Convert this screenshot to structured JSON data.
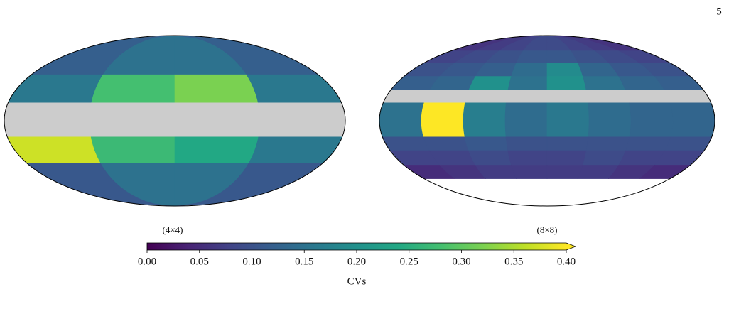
{
  "page_number": "5",
  "chart_data": {
    "type": "mollweide-heatmap",
    "cmap": "viridis",
    "bad_color": "#cccccc",
    "maps": [
      {
        "title": "(4×4)",
        "values": [
          [
            0.12,
            0.15,
            0.15,
            0.12
          ],
          [
            0.16,
            0.28,
            0.32,
            0.16
          ],
          [
            null,
            null,
            null,
            null
          ],
          [
            0.37,
            0.27,
            0.24,
            0.16
          ],
          [
            0.11,
            0.15,
            0.15,
            0.11
          ]
        ]
      },
      {
        "title": "(8×8)",
        "values": [
          [
            0.06,
            0.07,
            0.08,
            0.09,
            0.09,
            0.08,
            0.07,
            0.06
          ],
          [
            0.08,
            0.09,
            0.1,
            0.11,
            0.11,
            0.1,
            0.09,
            0.08
          ],
          [
            0.1,
            0.11,
            0.12,
            0.14,
            0.19,
            0.13,
            0.11,
            0.1
          ],
          [
            0.12,
            0.13,
            0.2,
            0.15,
            0.2,
            0.15,
            0.13,
            0.12
          ],
          [
            null,
            null,
            null,
            null,
            null,
            null,
            null,
            null
          ],
          [
            0.15,
            0.4,
            0.17,
            0.14,
            0.16,
            0.14,
            0.13,
            0.13
          ],
          [
            0.1,
            0.1,
            0.11,
            0.1,
            0.1,
            0.1,
            0.1,
            0.1
          ],
          [
            0.08,
            0.08,
            0.09,
            0.08,
            0.08,
            0.09,
            0.08,
            0.08
          ],
          [
            0.05,
            0.06,
            0.07,
            0.07,
            0.07,
            0.07,
            0.06,
            0.05
          ]
        ]
      }
    ],
    "colorbar": {
      "label": "CVs",
      "xlim": [
        0,
        0.4
      ],
      "extend": "max",
      "xticks": [
        {
          "value": 0,
          "label": "0.00"
        },
        {
          "value": 0.05,
          "label": "0.05"
        },
        {
          "value": 0.1,
          "label": "0.10"
        },
        {
          "value": 0.15,
          "label": "0.15"
        },
        {
          "value": 0.2,
          "label": "0.20"
        },
        {
          "value": 0.25,
          "label": "0.25"
        },
        {
          "value": 0.3,
          "label": "0.30"
        },
        {
          "value": 0.35,
          "label": "0.35"
        },
        {
          "value": 0.4,
          "label": "0.40"
        }
      ]
    }
  }
}
